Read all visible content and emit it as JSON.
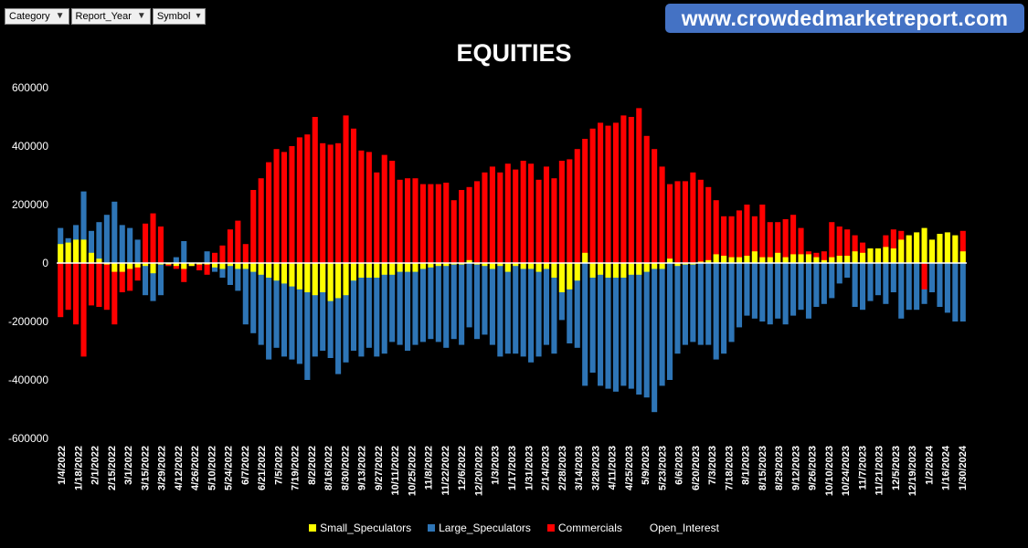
{
  "filters": [
    {
      "label": "Category",
      "icon": "funnel-icon"
    },
    {
      "label": "Report_Year",
      "icon": "funnel-icon"
    },
    {
      "label": "Symbol",
      "icon": "dropdown-arrow-icon"
    }
  ],
  "banner": "www.crowdedmarketreport.com",
  "chart_data": {
    "type": "bar",
    "title": "EQUITIES",
    "ylim": [
      -600000,
      600000
    ],
    "yticks": [
      "600000",
      "400000",
      "200000",
      "0",
      "-200000",
      "-400000",
      "-600000"
    ],
    "tick_labels": [
      "1/4/2022",
      "1/18/2022",
      "2/1/2022",
      "2/15/2022",
      "3/1/2022",
      "3/15/2022",
      "3/29/2022",
      "4/12/2022",
      "4/26/2022",
      "5/10/2022",
      "5/24/2022",
      "6/7/2022",
      "6/21/2022",
      "7/5/2022",
      "7/19/2022",
      "8/2/2022",
      "8/16/2022",
      "8/30/2022",
      "9/13/2022",
      "9/27/2022",
      "10/11/2022",
      "10/25/2022",
      "11/8/2022",
      "11/22/2022",
      "12/6/2022",
      "12/20/2022",
      "1/3/2023",
      "1/17/2023",
      "1/31/2023",
      "2/14/2023",
      "2/28/2023",
      "3/14/2023",
      "3/28/2023",
      "4/11/2023",
      "4/25/2023",
      "5/9/2023",
      "5/23/2023",
      "6/6/2023",
      "6/20/2023",
      "7/3/2023",
      "7/18/2023",
      "8/1/2023",
      "8/15/2023",
      "8/29/2023",
      "9/12/2023",
      "9/26/2023",
      "10/10/2023",
      "10/24/2023",
      "11/7/2023",
      "11/21/2023",
      "12/5/2023",
      "12/19/2023",
      "1/2/2024",
      "1/16/2024",
      "1/30/2024"
    ],
    "legend": [
      "Small_Speculators",
      "Large_Speculators",
      "Commercials",
      "Open_Interest"
    ],
    "colors": {
      "small": "#ffff00",
      "large": "#2e75b6",
      "commercials": "#ff0000",
      "open_interest": "#000000"
    },
    "series": [
      {
        "name": "Small_Speculators",
        "values": [
          65000,
          70000,
          80000,
          80000,
          35000,
          15000,
          -5000,
          -30000,
          -30000,
          -20000,
          -15000,
          -10000,
          -35000,
          -5000,
          -5000,
          -10000,
          -20000,
          -10000,
          -5000,
          -5000,
          -15000,
          -20000,
          -10000,
          -20000,
          -20000,
          -30000,
          -40000,
          -50000,
          -60000,
          -70000,
          -80000,
          -90000,
          -100000,
          -110000,
          -100000,
          -130000,
          -120000,
          -110000,
          -60000,
          -50000,
          -50000,
          -50000,
          -40000,
          -40000,
          -30000,
          -30000,
          -30000,
          -20000,
          -15000,
          -10000,
          -10000,
          -5000,
          -5000,
          10000,
          -5000,
          -10000,
          -20000,
          -10000,
          -30000,
          -10000,
          -20000,
          -20000,
          -30000,
          -20000,
          -50000,
          -100000,
          -90000,
          -60000,
          35000,
          -50000,
          -40000,
          -50000,
          -50000,
          -50000,
          -40000,
          -40000,
          -30000,
          -20000,
          -20000,
          15000,
          -10000,
          -5000,
          -5000,
          5000,
          10000,
          30000,
          25000,
          20000,
          20000,
          25000,
          40000,
          20000,
          20000,
          35000,
          20000,
          30000,
          30000,
          30000,
          20000,
          10000,
          20000,
          25000,
          25000,
          40000,
          35000,
          50000,
          50000,
          55000,
          50000,
          80000,
          95000,
          105000,
          120000,
          80000,
          100000,
          105000,
          95000,
          40000
        ]
      },
      {
        "name": "Large_Speculators",
        "values": [
          120000,
          85000,
          130000,
          245000,
          110000,
          140000,
          165000,
          210000,
          130000,
          120000,
          80000,
          -110000,
          -130000,
          -110000,
          -10000,
          20000,
          75000,
          -10000,
          -10000,
          40000,
          -30000,
          -50000,
          -75000,
          -95000,
          -210000,
          -240000,
          -280000,
          -330000,
          -290000,
          -320000,
          -330000,
          -345000,
          -400000,
          -320000,
          -300000,
          -325000,
          -380000,
          -340000,
          -300000,
          -320000,
          -290000,
          -320000,
          -310000,
          -270000,
          -280000,
          -300000,
          -280000,
          -270000,
          -260000,
          -270000,
          -290000,
          -260000,
          -280000,
          -220000,
          -260000,
          -245000,
          -280000,
          -320000,
          -310000,
          -310000,
          -320000,
          -340000,
          -320000,
          -280000,
          -310000,
          -195000,
          -275000,
          -290000,
          -420000,
          -375000,
          -420000,
          -430000,
          -440000,
          -420000,
          -430000,
          -450000,
          -460000,
          -510000,
          -420000,
          -400000,
          -310000,
          -280000,
          -270000,
          -280000,
          -280000,
          -330000,
          -310000,
          -270000,
          -220000,
          -180000,
          -190000,
          -200000,
          -210000,
          -190000,
          -210000,
          -180000,
          -160000,
          -190000,
          -150000,
          -140000,
          -120000,
          -70000,
          -50000,
          -150000,
          -160000,
          -130000,
          -110000,
          -140000,
          -100000,
          -190000,
          -160000,
          -160000,
          -140000,
          -100000,
          -150000,
          -170000,
          -200000,
          -200000
        ]
      },
      {
        "name": "Commercials",
        "values": [
          -185000,
          -160000,
          -210000,
          -320000,
          -145000,
          -150000,
          -160000,
          -210000,
          -100000,
          -95000,
          -60000,
          135000,
          170000,
          125000,
          -10000,
          -20000,
          -65000,
          -10000,
          -25000,
          -40000,
          35000,
          60000,
          115000,
          145000,
          65000,
          250000,
          290000,
          345000,
          390000,
          380000,
          400000,
          430000,
          440000,
          500000,
          410000,
          405000,
          410000,
          505000,
          460000,
          385000,
          380000,
          310000,
          370000,
          350000,
          285000,
          290000,
          290000,
          270000,
          270000,
          270000,
          275000,
          215000,
          250000,
          260000,
          280000,
          310000,
          330000,
          310000,
          340000,
          320000,
          350000,
          340000,
          285000,
          330000,
          290000,
          350000,
          355000,
          390000,
          425000,
          460000,
          480000,
          470000,
          480000,
          505000,
          500000,
          530000,
          435000,
          390000,
          330000,
          270000,
          280000,
          280000,
          310000,
          285000,
          260000,
          215000,
          160000,
          160000,
          180000,
          200000,
          160000,
          200000,
          140000,
          140000,
          150000,
          165000,
          120000,
          40000,
          35000,
          40000,
          140000,
          125000,
          115000,
          95000,
          70000,
          50000,
          40000,
          95000,
          115000,
          110000,
          90000,
          80000,
          -90000,
          60000,
          50000,
          80000,
          90000,
          110000
        ]
      }
    ]
  }
}
